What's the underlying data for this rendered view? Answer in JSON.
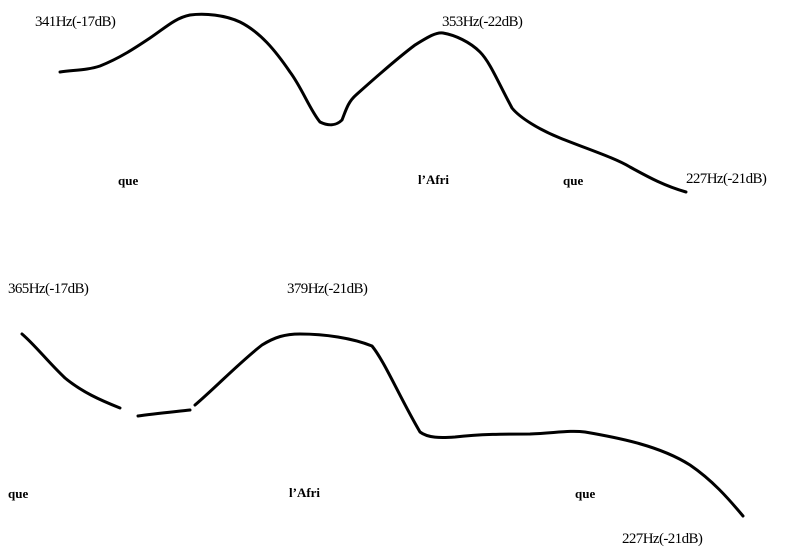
{
  "upper_contour": {
    "labels": {
      "start": "341Hz(-17dB)",
      "peak": "353Hz(-22dB)",
      "end": "227Hz(-21dB)"
    },
    "syllables": [
      "que",
      "l’Afri",
      "que"
    ]
  },
  "lower_contour": {
    "labels": {
      "start": "365Hz(-17dB)",
      "peak": "379Hz(-21dB)",
      "end": "227Hz(-21dB)"
    },
    "syllables": [
      "que",
      "l’Afri",
      "que"
    ]
  },
  "colors": {
    "line": "#000000",
    "background": "#ffffff"
  }
}
